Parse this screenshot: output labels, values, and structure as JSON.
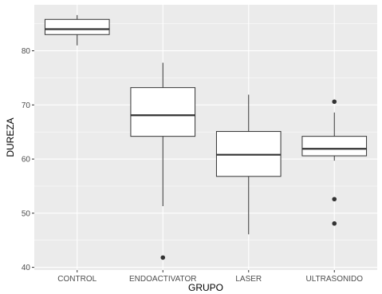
{
  "chart_data": {
    "type": "boxplot",
    "xlabel": "GRUPO",
    "ylabel": "DUREZA",
    "ylim": [
      39.5,
      88.5
    ],
    "yticks": [
      40,
      50,
      60,
      70,
      80
    ],
    "categories": [
      "CONTROL",
      "ENDOACTIVATOR",
      "LASER",
      "ULTRASONIDO"
    ],
    "boxes": [
      {
        "category": "CONTROL",
        "whisker_low": 81.0,
        "q1": 83.0,
        "median": 84.0,
        "q3": 85.8,
        "whisker_high": 86.6,
        "outliers": []
      },
      {
        "category": "ENDOACTIVATOR",
        "whisker_low": 51.3,
        "q1": 64.2,
        "median": 68.1,
        "q3": 73.2,
        "whisker_high": 77.8,
        "outliers": [
          41.8
        ]
      },
      {
        "category": "LASER",
        "whisker_low": 46.1,
        "q1": 56.8,
        "median": 60.8,
        "q3": 65.1,
        "whisker_high": 71.9,
        "outliers": []
      },
      {
        "category": "ULTRASONIDO",
        "whisker_low": 59.7,
        "q1": 60.6,
        "median": 61.9,
        "q3": 64.2,
        "whisker_high": 68.6,
        "outliers": [
          70.6,
          52.6,
          48.1
        ]
      }
    ],
    "grid": true,
    "legend": "none",
    "colors": {
      "panel": "#ebebeb",
      "grid_major": "#ffffff",
      "box_fill": "#ffffff",
      "box_line": "#333333",
      "tick_text": "#4d4d4d"
    }
  }
}
